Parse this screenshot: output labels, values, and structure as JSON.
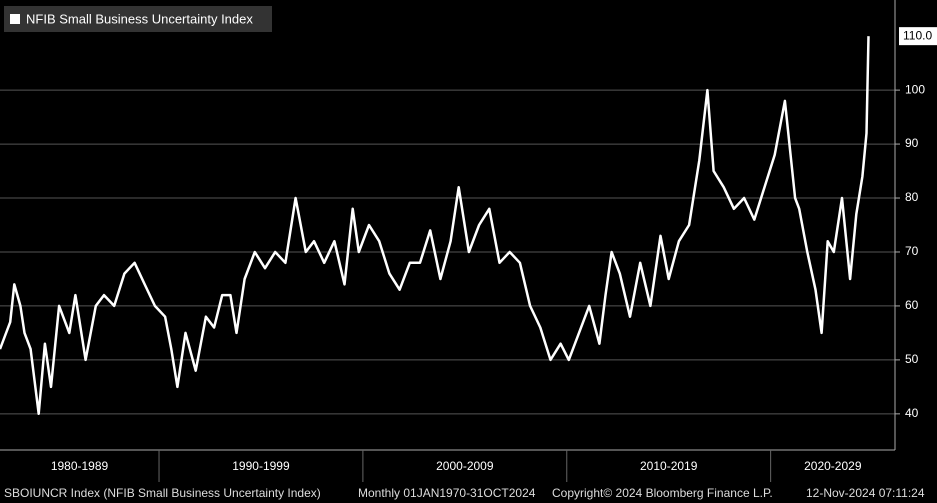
{
  "chart_data": {
    "type": "line",
    "series": [
      {
        "name": "NFIB Small Business Uncertainty Index",
        "color": "#ffffff",
        "x": [
          1982.2,
          1982.7,
          1982.9,
          1983.2,
          1983.4,
          1983.7,
          1984.1,
          1984.4,
          1984.7,
          1985.1,
          1985.6,
          1985.9,
          1986.4,
          1986.9,
          1987.3,
          1987.8,
          1988.3,
          1988.8,
          1989.3,
          1989.8,
          1990.3,
          1990.6,
          1990.9,
          1991.3,
          1991.8,
          1992.3,
          1992.7,
          1993.1,
          1993.5,
          1993.8,
          1994.2,
          1994.7,
          1995.2,
          1995.7,
          1996.2,
          1996.7,
          1997.2,
          1997.6,
          1998.1,
          1998.6,
          1999.1,
          1999.5,
          1999.8,
          2000.3,
          2000.8,
          2001.3,
          2001.8,
          2002.3,
          2002.8,
          2003.3,
          2003.8,
          2004.3,
          2004.7,
          2005.2,
          2005.7,
          2006.2,
          2006.7,
          2007.2,
          2007.7,
          2008.2,
          2008.7,
          2009.2,
          2009.7,
          2010.1,
          2010.6,
          2011.1,
          2011.6,
          2011.9,
          2012.2,
          2012.6,
          2013.1,
          2013.6,
          2014.1,
          2014.6,
          2015.0,
          2015.5,
          2016.0,
          2016.5,
          2016.9,
          2017.2,
          2017.7,
          2018.2,
          2018.7,
          2019.2,
          2019.7,
          2020.2,
          2020.7,
          2021.2,
          2021.4,
          2021.8,
          2022.2,
          2022.5,
          2022.8,
          2023.1,
          2023.5,
          2023.9,
          2024.2,
          2024.5,
          2024.7,
          2024.8
        ],
        "values": [
          52,
          57,
          64,
          60,
          55,
          52,
          40,
          53,
          45,
          60,
          55,
          62,
          50,
          60,
          62,
          60,
          66,
          68,
          64,
          60,
          58,
          52,
          45,
          55,
          48,
          58,
          56,
          62,
          62,
          55,
          65,
          70,
          67,
          70,
          68,
          80,
          70,
          72,
          68,
          72,
          64,
          78,
          70,
          75,
          72,
          66,
          63,
          68,
          68,
          74,
          65,
          72,
          82,
          70,
          75,
          78,
          68,
          70,
          68,
          60,
          56,
          50,
          53,
          50,
          55,
          60,
          53,
          62,
          70,
          66,
          58,
          68,
          60,
          73,
          65,
          72,
          75,
          87,
          100,
          85,
          82,
          78,
          80,
          76,
          82,
          88,
          98,
          80,
          78,
          70,
          63,
          55,
          72,
          70,
          80,
          65,
          77,
          84,
          92,
          110
        ],
        "value_labels": [
          null,
          null,
          null,
          null,
          null,
          null,
          null,
          null,
          null,
          null,
          null,
          null,
          null,
          null,
          null,
          null,
          null,
          null,
          null,
          null,
          null,
          null,
          null,
          null,
          null,
          null,
          null,
          null,
          null,
          null,
          null,
          null,
          null,
          null,
          null,
          null,
          null,
          null,
          null,
          null,
          null,
          null,
          null,
          null,
          null,
          null,
          null,
          null,
          null,
          null,
          null,
          null,
          null,
          null,
          null,
          null,
          null,
          null,
          null,
          null,
          null,
          null,
          null,
          null,
          null,
          null,
          null,
          null,
          null,
          null,
          null,
          null,
          null,
          null,
          null,
          null,
          null,
          null,
          null,
          null,
          null,
          null,
          null,
          null,
          null,
          null,
          null,
          null,
          null,
          null,
          null,
          null,
          null,
          null,
          null,
          null,
          null,
          null,
          null,
          "110.0"
        ]
      }
    ],
    "xlim": [
      1982.2,
      2026.1
    ],
    "xticks": [
      {
        "value": 1980,
        "label": "1980-1989"
      },
      {
        "value": 1990,
        "label": "1990-1999"
      },
      {
        "value": 2000,
        "label": "2000-2009"
      },
      {
        "value": 2010,
        "label": "2010-2019"
      },
      {
        "value": 2020,
        "label": "2020-2029"
      }
    ],
    "ylim": [
      33.3,
      116.7
    ],
    "yticks": [
      40,
      50,
      60,
      70,
      80,
      90,
      100
    ],
    "grid": true,
    "legend": "upper left",
    "footer": [
      "SBOIUNCR Index (NFIB Small Business Uncertainty Index)",
      "Monthly 01JAN1970-31OCT2024",
      "Copyright© 2024 Bloomberg Finance L.P.",
      "12-Nov-2024 07:11:24"
    ]
  }
}
